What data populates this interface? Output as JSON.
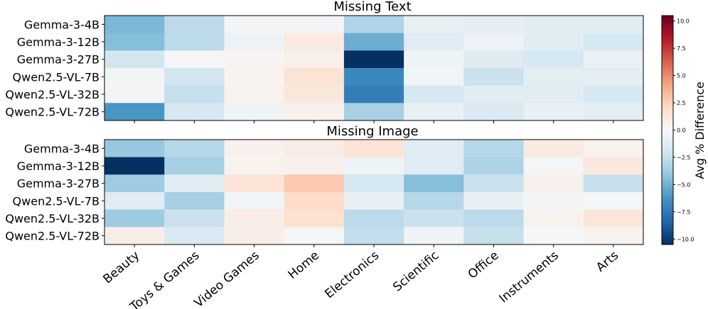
{
  "chart_data": {
    "type": "heatmap",
    "categories": [
      "Beauty",
      "Toys & Games",
      "Video Games",
      "Home",
      "Electronics",
      "Scientific",
      "Office",
      "Instruments",
      "Arts"
    ],
    "rows": [
      "Gemma-3-4B",
      "Gemma-3-12B",
      "Gemma-3-27B",
      "Qwen2.5-VL-7B",
      "Qwen2.5-VL-32B",
      "Qwen2.5-VL-72B"
    ],
    "panels": [
      {
        "title": "Missing Text",
        "values": [
          [
            -4.8,
            -2.8,
            -0.3,
            -0.3,
            -3.2,
            -0.8,
            -1.0,
            -1.2,
            -1.2
          ],
          [
            -4.5,
            -2.8,
            -0.6,
            1.0,
            -5.2,
            -1.3,
            -0.6,
            -1.2,
            -1.8
          ],
          [
            -2.0,
            -0.2,
            0.3,
            0.6,
            -10.5,
            -0.5,
            -1.4,
            -1.8,
            -0.7
          ],
          [
            -0.3,
            -2.0,
            0.3,
            1.5,
            -6.8,
            -0.4,
            -2.3,
            -1.1,
            -1.1
          ],
          [
            -0.3,
            -2.5,
            0.4,
            1.2,
            -7.3,
            -1.8,
            -1.2,
            -1.2,
            -1.8
          ],
          [
            -6.2,
            -1.8,
            -0.5,
            0.5,
            -3.5,
            -0.8,
            -1.6,
            -0.8,
            -1.1
          ]
        ]
      },
      {
        "title": "Missing Image",
        "values": [
          [
            -4.0,
            -3.0,
            0.5,
            0.8,
            1.5,
            -1.3,
            -3.0,
            1.0,
            0.4
          ],
          [
            -10.8,
            -3.5,
            0.4,
            0.5,
            -0.5,
            -1.3,
            -3.3,
            -0.2,
            1.1
          ],
          [
            -3.8,
            -1.2,
            1.5,
            2.8,
            -1.8,
            -4.5,
            -2.3,
            0.5,
            -2.5
          ],
          [
            -1.3,
            -3.5,
            -0.4,
            2.0,
            -0.8,
            -3.0,
            -0.8,
            -0.3,
            -0.2
          ],
          [
            -3.8,
            -2.3,
            0.7,
            1.7,
            -2.8,
            -2.3,
            -2.8,
            0.4,
            1.3
          ],
          [
            0.7,
            -1.6,
            0.7,
            -0.2,
            -2.6,
            -0.5,
            -2.5,
            -0.1,
            0.4
          ]
        ]
      }
    ],
    "colorbar": {
      "label": "Avg % Difference",
      "min": -10.5,
      "max": 10.5,
      "ticks": [
        10.0,
        7.5,
        5.0,
        2.5,
        0.0,
        -2.5,
        -5.0,
        -7.5,
        -10.0
      ],
      "tick_labels": [
        "10.0",
        "7.5",
        "5.0",
        "2.5",
        "0.0",
        "−2.5",
        "−5.0",
        "−7.5",
        "−10.0"
      ]
    }
  }
}
